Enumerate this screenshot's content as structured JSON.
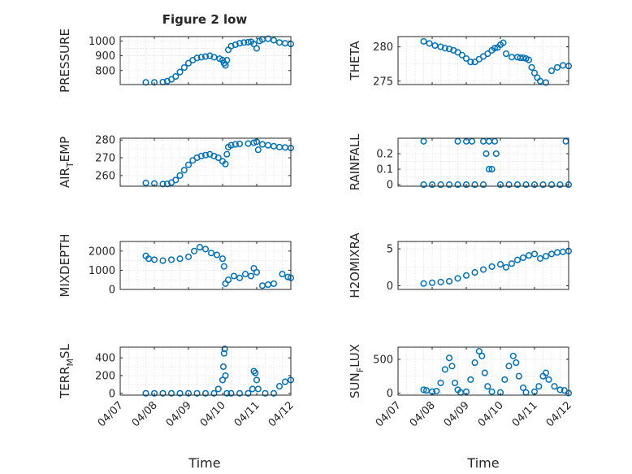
{
  "figure": {
    "title": "Figure 2 low",
    "xlabel": "Time",
    "marker_color": "#0072BD",
    "x_ticks": [
      "04/07",
      "04/08",
      "04/09",
      "04/10",
      "04/11",
      "04/12"
    ]
  },
  "chart_data": [
    {
      "type": "scatter",
      "ylabel": "PRESSURE",
      "xlim": [
        "04/07",
        "04/12"
      ],
      "ylim": [
        705,
        1030
      ],
      "yticks": [
        800,
        900,
        1000
      ],
      "grid": true,
      "series": [
        {
          "x": [
            "04/07 18:00",
            "04/08 00:00",
            "04/08 06:00",
            "04/08 09:00",
            "04/08 12:00",
            "04/08 15:00",
            "04/08 18:00",
            "04/08 21:00",
            "04/09 00:00",
            "04/09 03:00",
            "04/09 06:00",
            "04/09 09:00",
            "04/09 12:00",
            "04/09 15:00",
            "04/09 18:00",
            "04/09 22:00",
            "04/10 00:00",
            "04/10 01:00",
            "04/10 02:00",
            "04/10 03:00",
            "04/10 04:00",
            "04/10 06:00",
            "04/10 09:00",
            "04/10 12:00",
            "04/10 15:00",
            "04/10 18:00",
            "04/10 20:00",
            "04/10 22:00",
            "04/11 00:00",
            "04/11 02:00",
            "04/11 04:00",
            "04/11 08:00",
            "04/11 12:00",
            "04/11 16:00",
            "04/11 20:00",
            "04/12 00:00"
          ],
          "y": [
            720,
            720,
            722,
            728,
            740,
            760,
            790,
            820,
            850,
            870,
            885,
            890,
            895,
            900,
            890,
            880,
            870,
            850,
            835,
            870,
            940,
            965,
            975,
            985,
            990,
            992,
            995,
            980,
            950,
            1000,
            1010,
            1015,
            1005,
            990,
            985,
            980
          ]
        }
      ]
    },
    {
      "type": "scatter",
      "ylabel": "THETA",
      "xlim": [
        "04/07",
        "04/12"
      ],
      "ylim": [
        274.5,
        281.5
      ],
      "yticks": [
        275,
        280
      ],
      "grid": true,
      "series": [
        {
          "x": [
            "04/07 18:00",
            "04/07 22:00",
            "04/08 02:00",
            "04/08 06:00",
            "04/08 09:00",
            "04/08 12:00",
            "04/08 15:00",
            "04/08 18:00",
            "04/08 21:00",
            "04/09 00:00",
            "04/09 03:00",
            "04/09 06:00",
            "04/09 09:00",
            "04/09 12:00",
            "04/09 15:00",
            "04/09 18:00",
            "04/09 20:00",
            "04/09 22:00",
            "04/10 00:00",
            "04/10 02:00",
            "04/10 04:00",
            "04/10 08:00",
            "04/10 12:00",
            "04/10 14:00",
            "04/10 16:00",
            "04/10 18:00",
            "04/10 20:00",
            "04/10 22:00",
            "04/11 00:00",
            "04/11 02:00",
            "04/11 04:00",
            "04/11 08:00",
            "04/11 12:00",
            "04/11 16:00",
            "04/11 20:00",
            "04/12 00:00"
          ],
          "y": [
            280.8,
            280.5,
            280.2,
            280,
            279.8,
            279.7,
            279.5,
            279.2,
            278.8,
            278.3,
            277.8,
            277.8,
            278.2,
            278.6,
            279.0,
            279.5,
            279.8,
            279.9,
            280.3,
            280.6,
            279.0,
            278.5,
            278.5,
            278.4,
            278.4,
            278.3,
            278.1,
            277.0,
            276.2,
            275.5,
            275.0,
            274.8,
            276.5,
            277.0,
            277.3,
            277.2
          ]
        }
      ]
    },
    {
      "type": "scatter",
      "ylabel": "AIR",
      "ylabel_sub": "T",
      "ylabel_rest": "EMP",
      "xlim": [
        "04/07",
        "04/12"
      ],
      "ylim": [
        254,
        281
      ],
      "yticks": [
        260,
        270,
        280
      ],
      "grid": true,
      "series": [
        {
          "x": [
            "04/07 18:00",
            "04/08 00:00",
            "04/08 06:00",
            "04/08 09:00",
            "04/08 12:00",
            "04/08 15:00",
            "04/08 18:00",
            "04/08 21:00",
            "04/09 00:00",
            "04/09 03:00",
            "04/09 06:00",
            "04/09 09:00",
            "04/09 12:00",
            "04/09 15:00",
            "04/09 18:00",
            "04/09 21:00",
            "04/10 00:00",
            "04/10 02:00",
            "04/10 03:00",
            "04/10 04:00",
            "04/10 06:00",
            "04/10 09:00",
            "04/10 12:00",
            "04/10 18:00",
            "04/10 22:00",
            "04/11 00:00",
            "04/11 01:00",
            "04/11 04:00",
            "04/11 08:00",
            "04/11 12:00",
            "04/11 16:00",
            "04/11 20:00",
            "04/12 00:00"
          ],
          "y": [
            255.8,
            255.5,
            255.2,
            255.3,
            256.0,
            257.5,
            260.0,
            263.0,
            266.0,
            268.5,
            270.0,
            271.0,
            271.5,
            272.0,
            271.0,
            270.0,
            268.0,
            266.5,
            272.0,
            276.0,
            277.0,
            277.5,
            277.8,
            278.0,
            278.5,
            279.0,
            274.5,
            277.5,
            277.0,
            276.5,
            276.0,
            275.8,
            275.5
          ]
        }
      ]
    },
    {
      "type": "scatter",
      "ylabel": "RAINFALL",
      "xlim": [
        "04/07",
        "04/12"
      ],
      "ylim": [
        -0.01,
        0.3
      ],
      "yticks": [
        0,
        0.1,
        0.2
      ],
      "grid": true,
      "series": [
        {
          "x": [
            "04/07 18:00",
            "04/08 00:00",
            "04/08 06:00",
            "04/08 12:00",
            "04/08 18:00",
            "04/09 00:00",
            "04/09 06:00",
            "04/09 12:00",
            "04/09 14:00",
            "04/09 16:00",
            "04/09 18:00",
            "04/09 21:00",
            "04/10 00:00",
            "04/10 06:00",
            "04/10 12:00",
            "04/10 18:00",
            "04/11 00:00",
            "04/11 06:00",
            "04/11 12:00",
            "04/11 18:00",
            "04/12 00:00",
            "04/07 18:00",
            "04/08 18:00",
            "04/09 00:00",
            "04/09 04:00",
            "04/09 12:00",
            "04/09 16:00",
            "04/09 20:00",
            "04/11 22:00"
          ],
          "y": [
            0,
            0,
            0,
            0,
            0,
            0,
            0,
            0,
            0.2,
            0.1,
            0.1,
            0.2,
            0,
            0,
            0,
            0,
            0,
            0,
            0,
            0,
            0,
            0.28,
            0.28,
            0.28,
            0.28,
            0.28,
            0.28,
            0.28,
            0.28
          ]
        }
      ]
    },
    {
      "type": "scatter",
      "ylabel": "MIXDEPTH",
      "xlim": [
        "04/07",
        "04/12"
      ],
      "ylim": [
        0,
        2500
      ],
      "yticks": [
        0,
        1000,
        2000
      ],
      "grid": true,
      "series": [
        {
          "x": [
            "04/07 18:00",
            "04/07 20:00",
            "04/08 00:00",
            "04/08 06:00",
            "04/08 12:00",
            "04/08 18:00",
            "04/09 00:00",
            "04/09 04:00",
            "04/09 08:00",
            "04/09 12:00",
            "04/09 16:00",
            "04/09 20:00",
            "04/10 00:00",
            "04/10 01:00",
            "04/10 02:00",
            "04/10 04:00",
            "04/10 08:00",
            "04/10 12:00",
            "04/10 16:00",
            "04/10 20:00",
            "04/10 22:00",
            "04/11 00:00",
            "04/11 04:00",
            "04/11 08:00",
            "04/11 12:00",
            "04/11 18:00",
            "04/11 22:00",
            "04/12 00:00"
          ],
          "y": [
            1750,
            1600,
            1550,
            1500,
            1550,
            1600,
            1700,
            2000,
            2200,
            2100,
            1900,
            1800,
            1600,
            1200,
            300,
            500,
            700,
            600,
            800,
            700,
            1100,
            900,
            200,
            250,
            300,
            800,
            650,
            600
          ]
        }
      ]
    },
    {
      "type": "scatter",
      "ylabel": "H2OMIXRA",
      "xlim": [
        "04/07",
        "04/12"
      ],
      "ylim": [
        -0.5,
        6
      ],
      "yticks": [
        0,
        5
      ],
      "grid": true,
      "series": [
        {
          "x": [
            "04/07 18:00",
            "04/08 00:00",
            "04/08 06:00",
            "04/08 12:00",
            "04/08 18:00",
            "04/09 00:00",
            "04/09 06:00",
            "04/09 12:00",
            "04/09 18:00",
            "04/10 00:00",
            "04/10 04:00",
            "04/10 08:00",
            "04/10 12:00",
            "04/10 16:00",
            "04/10 20:00",
            "04/11 00:00",
            "04/11 04:00",
            "04/11 08:00",
            "04/11 12:00",
            "04/11 16:00",
            "04/11 20:00",
            "04/12 00:00"
          ],
          "y": [
            0.3,
            0.4,
            0.5,
            0.6,
            1.0,
            1.4,
            1.8,
            2.2,
            2.6,
            2.9,
            2.5,
            3.0,
            3.5,
            3.8,
            4.1,
            4.3,
            3.7,
            4.0,
            4.3,
            4.5,
            4.6,
            4.7
          ]
        }
      ]
    },
    {
      "type": "scatter",
      "ylabel": "TERR",
      "ylabel_sub": "M",
      "ylabel_rest": "SL",
      "xlim": [
        "04/07",
        "04/12"
      ],
      "ylim": [
        -20,
        520
      ],
      "yticks": [
        0,
        200,
        400
      ],
      "grid": true,
      "series": [
        {
          "x": [
            "04/07 18:00",
            "04/08 00:00",
            "04/08 06:00",
            "04/08 12:00",
            "04/08 18:00",
            "04/09 00:00",
            "04/09 06:00",
            "04/09 12:00",
            "04/09 18:00",
            "04/09 21:00",
            "04/10 00:00",
            "04/10 00:30",
            "04/10 01:00",
            "04/10 01:30",
            "04/10 02:00",
            "04/10 03:00",
            "04/10 06:00",
            "04/10 12:00",
            "04/10 18:00",
            "04/10 21:00",
            "04/10 22:00",
            "04/10 23:00",
            "04/11 00:00",
            "04/11 01:00",
            "04/11 06:00",
            "04/11 12:00",
            "04/11 16:00",
            "04/11 20:00",
            "04/12 00:00"
          ],
          "y": [
            0,
            0,
            0,
            0,
            0,
            0,
            0,
            0,
            0,
            50,
            150,
            300,
            450,
            500,
            200,
            0,
            0,
            0,
            0,
            50,
            250,
            230,
            150,
            50,
            0,
            0,
            80,
            130,
            150
          ]
        }
      ]
    },
    {
      "type": "scatter",
      "ylabel": "SUN",
      "ylabel_sub": "F",
      "ylabel_rest": "LUX",
      "xlim": [
        "04/07",
        "04/12"
      ],
      "ylim": [
        -30,
        680
      ],
      "yticks": [
        0,
        500
      ],
      "grid": true,
      "series": [
        {
          "x": [
            "04/07 18:00",
            "04/07 20:00",
            "04/08 00:00",
            "04/08 03:00",
            "04/08 06:00",
            "04/08 09:00",
            "04/08 12:00",
            "04/08 14:00",
            "04/08 16:00",
            "04/08 18:00",
            "04/08 20:00",
            "04/09 00:00",
            "04/09 03:00",
            "04/09 06:00",
            "04/09 09:00",
            "04/09 11:00",
            "04/09 13:00",
            "04/09 15:00",
            "04/09 18:00",
            "04/10 00:00",
            "04/10 03:00",
            "04/10 06:00",
            "04/10 09:00",
            "04/10 11:00",
            "04/10 13:00",
            "04/10 16:00",
            "04/10 18:00",
            "04/11 00:00",
            "04/11 03:00",
            "04/11 06:00",
            "04/11 08:00",
            "04/11 10:00",
            "04/11 14:00",
            "04/11 18:00",
            "04/11 21:00",
            "04/12 00:00"
          ],
          "y": [
            50,
            40,
            20,
            30,
            150,
            350,
            520,
            400,
            150,
            50,
            10,
            20,
            200,
            450,
            620,
            550,
            300,
            100,
            20,
            10,
            200,
            400,
            550,
            450,
            250,
            80,
            10,
            20,
            100,
            250,
            300,
            200,
            100,
            50,
            40,
            0
          ]
        }
      ]
    }
  ]
}
